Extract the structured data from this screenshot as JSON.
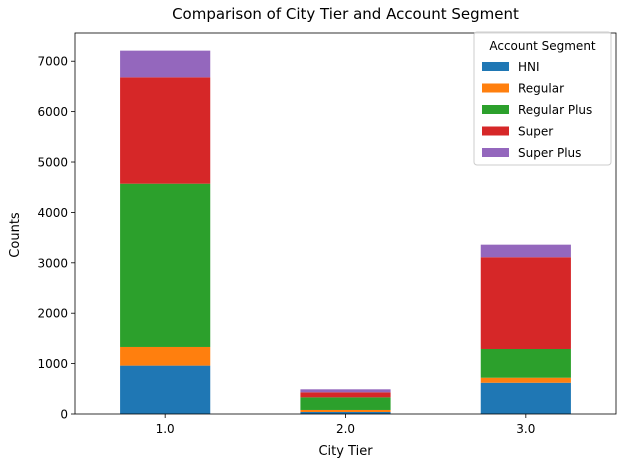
{
  "chart_data": {
    "type": "bar",
    "stacked": true,
    "title": "Comparison of City Tier and Account Segment",
    "xlabel": "City Tier",
    "ylabel": "Counts",
    "categories": [
      "1.0",
      "2.0",
      "3.0"
    ],
    "ylim": [
      0,
      7560
    ],
    "yticks": [
      0,
      1000,
      2000,
      3000,
      4000,
      5000,
      6000,
      7000
    ],
    "ytick_labels": [
      "0",
      "1000",
      "2000",
      "3000",
      "4000",
      "5000",
      "6000",
      "7000"
    ],
    "legend": {
      "title": "Account Segment",
      "placement": "top-right"
    },
    "series": [
      {
        "name": "HNI",
        "color": "#1f77b4",
        "values": [
          960,
          40,
          620
        ]
      },
      {
        "name": "Regular",
        "color": "#ff7f0e",
        "values": [
          370,
          40,
          100
        ]
      },
      {
        "name": "Regular Plus",
        "color": "#2ca02c",
        "values": [
          3240,
          250,
          570
        ]
      },
      {
        "name": "Super",
        "color": "#d62728",
        "values": [
          2110,
          100,
          1820
        ]
      },
      {
        "name": "Super Plus",
        "color": "#9467bd",
        "values": [
          530,
          60,
          250
        ]
      }
    ]
  }
}
